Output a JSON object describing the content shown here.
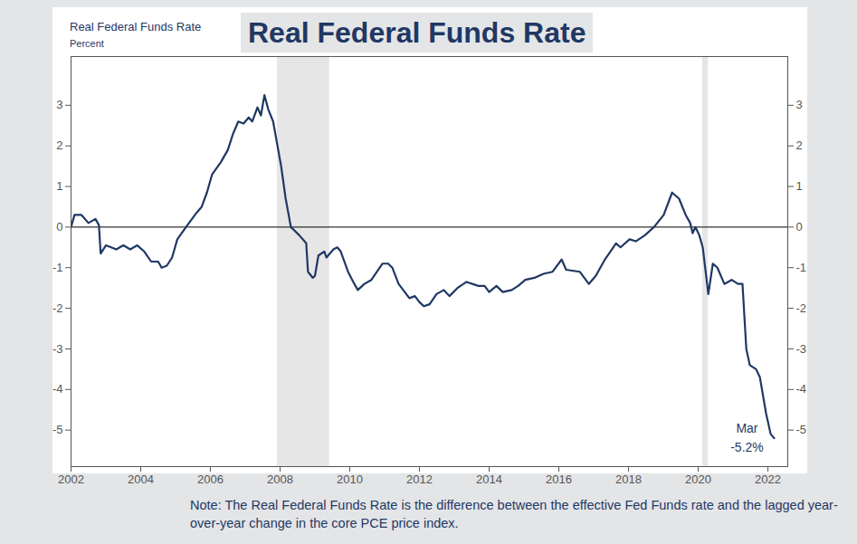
{
  "chart_data": {
    "type": "line",
    "title": "Real Federal Funds Rate",
    "y_label": "Real Federal Funds Rate",
    "y_unit": "Percent",
    "note": "Note: The Real Federal Funds Rate is the difference between the effective Fed Funds rate and the lagged year-over-year change in the core PCE price index.",
    "color": "#1f3864",
    "x": [
      2002.0,
      2002.1,
      2002.3,
      2002.5,
      2002.7,
      2002.8,
      2002.85,
      2003.0,
      2003.3,
      2003.5,
      2003.7,
      2003.9,
      2004.1,
      2004.3,
      2004.5,
      2004.6,
      2004.75,
      2004.9,
      2005.05,
      2005.3,
      2005.6,
      2005.75,
      2005.9,
      2006.05,
      2006.3,
      2006.5,
      2006.65,
      2006.8,
      2006.95,
      2007.1,
      2007.2,
      2007.35,
      2007.45,
      2007.55,
      2007.66,
      2007.8,
      2008.03,
      2008.16,
      2008.31,
      2008.55,
      2008.75,
      2008.8,
      2008.94,
      2009.0,
      2009.1,
      2009.27,
      2009.33,
      2009.53,
      2009.64,
      2009.74,
      2009.95,
      2010.1,
      2010.23,
      2010.42,
      2010.62,
      2010.78,
      2010.94,
      2011.1,
      2011.22,
      2011.4,
      2011.71,
      2011.87,
      2012.0,
      2012.13,
      2012.29,
      2012.49,
      2012.7,
      2012.86,
      2013.09,
      2013.35,
      2013.69,
      2013.87,
      2014.0,
      2014.21,
      2014.39,
      2014.65,
      2014.83,
      2015.04,
      2015.3,
      2015.56,
      2015.82,
      2016.08,
      2016.21,
      2016.6,
      2016.86,
      2017.06,
      2017.32,
      2017.64,
      2017.77,
      2018.03,
      2018.21,
      2018.47,
      2018.73,
      2019.01,
      2019.25,
      2019.45,
      2019.64,
      2019.77,
      2019.84,
      2019.92,
      2020.03,
      2020.13,
      2020.29,
      2020.42,
      2020.55,
      2020.75,
      2020.96,
      2021.14,
      2021.27,
      2021.38,
      2021.48,
      2021.66,
      2021.77,
      2021.95,
      2022.08,
      2022.18
    ],
    "values": [
      0.0,
      0.3,
      0.3,
      0.1,
      0.2,
      0.05,
      -0.65,
      -0.45,
      -0.55,
      -0.45,
      -0.55,
      -0.45,
      -0.6,
      -0.85,
      -0.85,
      -1.0,
      -0.95,
      -0.75,
      -0.3,
      0.0,
      0.35,
      0.5,
      0.85,
      1.3,
      1.6,
      1.9,
      2.3,
      2.6,
      2.55,
      2.7,
      2.6,
      2.95,
      2.75,
      3.25,
      2.9,
      2.6,
      1.5,
      0.7,
      0.0,
      -0.2,
      -0.4,
      -1.1,
      -1.25,
      -1.2,
      -0.7,
      -0.6,
      -0.75,
      -0.55,
      -0.5,
      -0.6,
      -1.1,
      -1.35,
      -1.55,
      -1.4,
      -1.3,
      -1.1,
      -0.9,
      -0.9,
      -1.0,
      -1.4,
      -1.75,
      -1.7,
      -1.85,
      -1.95,
      -1.9,
      -1.65,
      -1.55,
      -1.7,
      -1.5,
      -1.35,
      -1.45,
      -1.45,
      -1.6,
      -1.45,
      -1.6,
      -1.55,
      -1.45,
      -1.3,
      -1.25,
      -1.15,
      -1.1,
      -0.8,
      -1.05,
      -1.1,
      -1.4,
      -1.2,
      -0.8,
      -0.4,
      -0.5,
      -0.3,
      -0.35,
      -0.2,
      0.0,
      0.3,
      0.85,
      0.7,
      0.3,
      0.1,
      -0.15,
      0.0,
      -0.2,
      -0.5,
      -1.65,
      -0.9,
      -1.0,
      -1.4,
      -1.3,
      -1.4,
      -1.4,
      -3.0,
      -3.4,
      -3.5,
      -3.7,
      -4.6,
      -5.1,
      -5.2
    ],
    "recessions": [
      [
        2007.92,
        2009.42
      ],
      [
        2020.13,
        2020.29
      ]
    ],
    "annotation": {
      "x": 2022.18,
      "y": -5.2,
      "label": "Mar",
      "value_label": "-5.2%"
    },
    "xlim": [
      2002,
      2022.57
    ],
    "xticks": [
      2002,
      2004,
      2006,
      2008,
      2010,
      2012,
      2014,
      2016,
      2018,
      2020,
      2022
    ],
    "ylim": [
      -5.9,
      4.2
    ],
    "yticks": [
      -5,
      -4,
      -3,
      -2,
      -1,
      0,
      1,
      2,
      3
    ],
    "grid": false
  }
}
